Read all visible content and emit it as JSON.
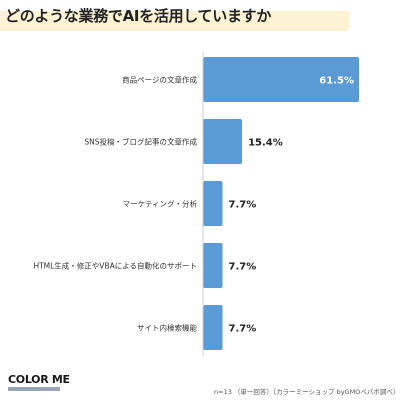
{
  "page": {
    "title": "どのような業務でAIを活用していますか"
  },
  "chart_data": {
    "type": "bar",
    "orientation": "horizontal",
    "categories": [
      "商品ページの文章作成",
      "SNS投稿・ブログ記事の文章作成",
      "マーケティング・分析",
      "HTML生成・修正やVBAによる自動化のサポート",
      "サイト内検索機能"
    ],
    "values": [
      61.5,
      15.4,
      7.7,
      7.7,
      7.7
    ],
    "value_labels": [
      "61.5%",
      "15.4%",
      "7.7%",
      "7.7%",
      "7.7%"
    ],
    "xlim": [
      0,
      61.5
    ],
    "grid": false,
    "legend": "none",
    "bar_color": "#5b9bd5"
  },
  "footer": {
    "logo": "COLOR ME",
    "note": "n=13 （単一回答）（カラーミーショップ byGMOペパボ調べ）"
  },
  "colors": {
    "title_band": "#fdf3d4",
    "axis_line": "#cccccc",
    "inner_label": "#ffffff",
    "outer_label": "#222222"
  }
}
